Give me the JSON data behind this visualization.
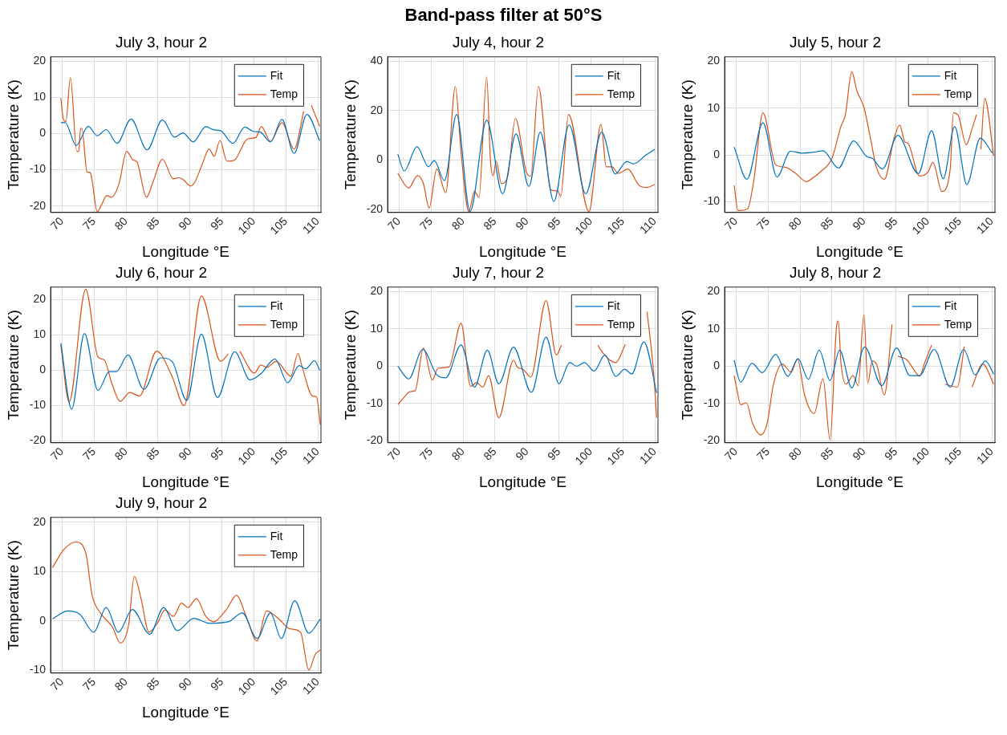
{
  "chart_data": [
    {
      "type": "line",
      "title": "July 3, hour 2",
      "annotations": [
        "Band-pass filter at 50°S"
      ],
      "xlabel": "Longitude °E",
      "ylabel": "Temperature (K)",
      "xlim": [
        68.2,
        110.5
      ],
      "xticks": [
        70,
        75,
        80,
        85,
        90,
        95,
        100,
        105,
        110
      ],
      "ylim": [
        -21.8,
        21.2
      ],
      "yticks": [
        -20,
        -10,
        0,
        10,
        20
      ],
      "grid": true,
      "legend": "top right",
      "marker": "none",
      "line_style": "solid",
      "series": [
        {
          "name": "Fit",
          "color": "#0072bd",
          "x": [
            69.8,
            70.5,
            72.2,
            74.1,
            75.5,
            76.9,
            78.6,
            80.8,
            83.3,
            85.7,
            87.6,
            88.9,
            90.5,
            92.5,
            93.8,
            94.8,
            96.7,
            98.6,
            99.9,
            101,
            102.6,
            104.4,
            106.3,
            108.3,
            110.3
          ],
          "values": [
            3,
            3,
            -3.3,
            2,
            -0.6,
            1.1,
            -2.7,
            4,
            -4.5,
            3.8,
            -1,
            0.2,
            -2.3,
            1.9,
            1,
            0.8,
            -2.7,
            1.8,
            0.6,
            0.4,
            -2.3,
            3.9,
            -5.5,
            5.3,
            -2
          ]
        },
        {
          "name": "Temp",
          "color": "#d95319",
          "x": [
            69.8,
            70.2,
            70.6,
            71.3,
            72.3,
            72.6,
            72.9,
            73.1,
            73.9,
            74.4,
            74.7,
            75.5,
            76.2,
            77,
            77.7,
            78.9,
            80.1,
            81.1,
            81.7,
            83.2,
            84.2,
            85.7,
            87.4,
            88.3,
            89,
            90.1,
            90.8,
            91.9,
            93,
            93.8,
            94.7,
            95.8,
            96.9,
            99,
            100.3,
            101.2,
            102.6,
            104.4,
            106.3,
            107.8,
            108.4,
            109,
            110.3
          ],
          "values": [
            9.8,
            4,
            3.3,
            15.5,
            -4.9,
            -4.9,
            1.4,
            1.4,
            -10.6,
            -10.8,
            -13,
            -21.6,
            -19.6,
            -17.1,
            -17.6,
            -13.9,
            -4.9,
            -7.3,
            -7.8,
            -17.6,
            -13.5,
            -7.1,
            -12.5,
            -12.2,
            -12.8,
            -14.5,
            -13.3,
            -8.6,
            -4.3,
            -6.3,
            -1.9,
            -7.6,
            -7.4,
            -1.5,
            -1.1,
            1.9,
            -2.2,
            3,
            -4.3,
            6.1,
            null,
            7.8,
            2
          ]
        }
      ]
    },
    {
      "type": "line",
      "title": "July 4, hour 2",
      "xlabel": "Longitude °E",
      "ylabel": "Temperature (K)",
      "xlim": [
        68.2,
        110.5
      ],
      "xticks": [
        70,
        75,
        80,
        85,
        90,
        95,
        100,
        105,
        110
      ],
      "ylim": [
        -21.2,
        41.8
      ],
      "yticks": [
        -20,
        0,
        20,
        40
      ],
      "grid": true,
      "legend": "top right",
      "marker": "none",
      "line_style": "solid",
      "series": [
        {
          "name": "Fit",
          "color": "#0072bd",
          "x": [
            69.8,
            70.8,
            72.8,
            74.6,
            75.5,
            77.1,
            79,
            81.1,
            83.7,
            86.2,
            88.3,
            90.3,
            92.1,
            94.2,
            96.6,
            99.2,
            101.7,
            103.8,
            105.6,
            106.7,
            108.6,
            110
          ],
          "values": [
            2.4,
            -4.4,
            5.4,
            -2.7,
            -0.2,
            -8.3,
            18.5,
            -20.8,
            16.1,
            -13.7,
            10.7,
            -10.7,
            11.3,
            -16.7,
            14.3,
            -13.7,
            11.3,
            -5.6,
            -0.6,
            -1.5,
            2,
            4.4
          ]
        },
        {
          "name": "Temp",
          "color": "#d95319",
          "x": [
            69.8,
            71.5,
            72.9,
            73.8,
            74.7,
            75.9,
            77.3,
            78.8,
            79.7,
            80.9,
            81.8,
            82.5,
            83.7,
            84.3,
            84.7,
            85.2,
            86,
            87,
            88.2,
            89.9,
            90.6,
            91.8,
            93.7,
            94.8,
            95.3,
            96.5,
            99.7,
            101.6,
            102.4,
            103.3,
            104.3,
            105.8,
            107.5,
            108.8,
            110
          ],
          "values": [
            -5.4,
            -11.3,
            -6.3,
            -9.5,
            -19.4,
            -3.6,
            -13.2,
            29.8,
            3,
            -20.8,
            -12.7,
            -15.1,
            33.7,
            -0.4,
            -6.3,
            -0.4,
            -9.5,
            -6.5,
            16.9,
            -4.8,
            -6.5,
            29.8,
            -11.9,
            -12.5,
            -14.6,
            18.5,
            -20.8,
            14.5,
            -2.7,
            -2.7,
            -5.4,
            -3.6,
            -10.1,
            -11.1,
            -9.8
          ]
        }
      ]
    },
    {
      "type": "line",
      "title": "July 5, hour 2",
      "xlabel": "Longitude °E",
      "ylabel": "Temperature (K)",
      "xlim": [
        68.2,
        110.5
      ],
      "xticks": [
        70,
        75,
        80,
        85,
        90,
        95,
        100,
        105,
        110
      ],
      "ylim": [
        -12.3,
        21
      ],
      "yticks": [
        -10,
        0,
        10,
        20
      ],
      "grid": true,
      "legend": "top right",
      "marker": "none",
      "line_style": "solid",
      "series": [
        {
          "name": "Fit",
          "color": "#0072bd",
          "x": [
            69.7,
            71.7,
            74.2,
            76.4,
            78.5,
            80.3,
            82.2,
            83.6,
            86,
            88.4,
            90.4,
            91.3,
            92.9,
            95.3,
            98.5,
            100.6,
            102.4,
            104.2,
            106.1,
            108.2,
            110.1
          ],
          "values": [
            1.7,
            -5.2,
            6.9,
            -4.7,
            0.8,
            0.4,
            0.6,
            0.9,
            -2.8,
            3,
            -0.3,
            -0.7,
            -3,
            4.2,
            -4,
            5.2,
            -5.1,
            6.1,
            -6.3,
            3.6,
            0.4
          ]
        },
        {
          "name": "Temp",
          "color": "#d95319",
          "x": [
            69.7,
            70.3,
            71.8,
            72.8,
            74.2,
            76.2,
            77.7,
            79.2,
            81,
            82.2,
            83.1,
            85,
            86.4,
            87.1,
            88.1,
            88.9,
            90,
            91.1,
            91.9,
            93.2,
            94.7,
            95.6,
            96.4,
            96.9,
            98.7,
            100,
            100.8,
            102.2,
            103.5,
            104,
            104.8,
            106,
            106.9,
            107.6,
            108,
            108.3,
            108.9,
            110.3
          ],
          "values": [
            -6.5,
            -11.9,
            -11.5,
            -5.2,
            9,
            -2.1,
            -2.6,
            -3.8,
            -5.7,
            -4.7,
            -3.7,
            -0.7,
            6.1,
            8.6,
            17.8,
            13.7,
            10.2,
            3,
            -2.4,
            -5.2,
            3.5,
            6.4,
            2.8,
            2.5,
            -4.5,
            -3.7,
            -1.6,
            -7.8,
            -3,
            9,
            8.3,
            2.2,
            5.5,
            8.6,
            null,
            1.2,
            12.1,
            -0.2
          ]
        }
      ]
    },
    {
      "type": "line",
      "title": "July 6, hour 2",
      "xlabel": "Longitude °E",
      "ylabel": "Temperature (K)",
      "xlim": [
        68.2,
        110.5
      ],
      "xticks": [
        70,
        75,
        80,
        85,
        90,
        95,
        100,
        105,
        110
      ],
      "ylim": [
        -20.5,
        23.5
      ],
      "yticks": [
        -20,
        -10,
        0,
        10,
        20
      ],
      "grid": true,
      "legend": "top right",
      "marker": "none",
      "line_style": "solid",
      "series": [
        {
          "name": "Fit",
          "color": "#0072bd",
          "x": [
            69.8,
            71.5,
            73.5,
            75.6,
            77.4,
            78.5,
            80.3,
            82.8,
            85.4,
            87.2,
            89.5,
            91.8,
            94.3,
            97,
            99.4,
            101.1,
            103.3,
            105.3,
            107.1,
            108.1,
            109.5,
            110.3
          ],
          "values": [
            7.7,
            -11,
            10.4,
            -5.7,
            -0.4,
            -0.4,
            4.3,
            -5.4,
            3.5,
            2.5,
            -8.5,
            10.2,
            -7.7,
            5.2,
            -2.7,
            -1,
            3.2,
            -3.5,
            1.3,
            0.4,
            2.7,
            0
          ]
        },
        {
          "name": "Temp",
          "color": "#d95319",
          "x": [
            69.8,
            71.1,
            73.7,
            75.6,
            76.6,
            77.8,
            79.1,
            80.6,
            82.1,
            84.8,
            87.2,
            89.1,
            91.8,
            94.8,
            96,
            97.3,
            97.8,
            100.1,
            101.1,
            102,
            103.5,
            105.8,
            106.9,
            107.5,
            109.2,
            109.8,
            110.4
          ],
          "values": [
            7.1,
            -9,
            22.9,
            3.8,
            2.9,
            -3.8,
            -8.8,
            -6.3,
            -7.3,
            5.4,
            -1.7,
            -10,
            21,
            2.5,
            4.6,
            null,
            5.4,
            -0.8,
            1.5,
            0.8,
            2.5,
            -1.7,
            4.8,
            1.3,
            -7.3,
            -7.5,
            -15.4
          ]
        }
      ]
    },
    {
      "type": "line",
      "title": "July 7, hour 2",
      "xlabel": "Longitude °E",
      "ylabel": "Temperature (K)",
      "xlim": [
        68.2,
        110.5
      ],
      "xticks": [
        70,
        75,
        80,
        85,
        90,
        95,
        100,
        105,
        110
      ],
      "ylim": [
        -20.5,
        21.2
      ],
      "yticks": [
        -20,
        -10,
        0,
        10,
        20
      ],
      "grid": true,
      "legend": "top right",
      "marker": "none",
      "line_style": "solid",
      "series": [
        {
          "name": "Fit",
          "color": "#0072bd",
          "x": [
            69.8,
            71.5,
            73.7,
            75.9,
            77.3,
            79.7,
            81.8,
            83.8,
            85.6,
            87.9,
            90.7,
            93,
            95,
            96.7,
            97.8,
            99,
            100.5,
            102.2,
            103.9,
            105.3,
            106.4,
            108.3,
            110.3
          ],
          "values": [
            0,
            -3.4,
            4.5,
            -2.3,
            -3.1,
            5.7,
            -5.6,
            4.3,
            -4.7,
            5.1,
            -7,
            7.8,
            -4.7,
            1,
            0,
            1,
            -1.3,
            3,
            -2.7,
            -0.8,
            -2.1,
            6.5,
            -7.2
          ]
        },
        {
          "name": "Temp",
          "color": "#d95319",
          "x": [
            69.8,
            70.6,
            71.7,
            72.5,
            73.8,
            75.2,
            76.1,
            77.8,
            79.7,
            81.2,
            82.1,
            83.1,
            84,
            85.6,
            87.9,
            88.6,
            89.3,
            90.6,
            93,
            94.6,
            95.4,
            98,
            101.1,
            101.4,
            103.9,
            105.4,
            107,
            108.8,
            109.8,
            110.3
          ],
          "values": [
            -10.3,
            -8.7,
            -6.8,
            -6.6,
            4.9,
            -3.7,
            -0.5,
            -0.2,
            11.5,
            -5.4,
            -4.4,
            -5.6,
            -2.5,
            -13.8,
            1.6,
            -0.4,
            -0.7,
            -2.9,
            17.6,
            3,
            5.7,
            null,
            5.7,
            4.7,
            1,
            5.9,
            null,
            14.6,
            -1.3,
            -13.8
          ]
        }
      ]
    },
    {
      "type": "line",
      "title": "July 8, hour 2",
      "xlabel": "Longitude °E",
      "ylabel": "Temperature (K)",
      "xlim": [
        68.2,
        110.5
      ],
      "xticks": [
        70,
        75,
        80,
        85,
        90,
        95,
        100,
        105,
        110
      ],
      "ylim": [
        -20.5,
        21.2
      ],
      "yticks": [
        -20,
        -10,
        0,
        10,
        20
      ],
      "grid": true,
      "legend": "top right",
      "marker": "none",
      "line_style": "solid",
      "series": [
        {
          "name": "Fit",
          "color": "#0072bd",
          "x": [
            69.7,
            70.7,
            72.5,
            74.1,
            76.2,
            78.1,
            79.7,
            81.3,
            83,
            84.7,
            86.2,
            88.1,
            90.1,
            92.8,
            95.1,
            97.2,
            98.7,
            101,
            103.5,
            105.6,
            107.4,
            109,
            110.3
          ],
          "values": [
            1.6,
            -4.3,
            0.8,
            -1.7,
            3.2,
            -2.7,
            2,
            -3.5,
            4.3,
            -3.8,
            4.3,
            -5.8,
            5.2,
            -5.2,
            4.9,
            -2.5,
            -2.5,
            4.5,
            -5.6,
            4.5,
            -2.3,
            1.4,
            -2.1
          ]
        },
        {
          "name": "Temp",
          "color": "#d95319",
          "x": [
            69.7,
            70.1,
            70.7,
            71.6,
            72.6,
            73.9,
            74.9,
            75.8,
            77.2,
            78.6,
            79.6,
            80.7,
            82.2,
            83.6,
            84.7,
            85.7,
            86,
            86.4,
            87.2,
            88.3,
            89.1,
            90,
            90.6,
            91.3,
            92,
            93.2,
            94.4,
            94.9,
            95.3,
            96.8,
            97.8,
            98.7,
            99.5,
            100.6,
            100.9,
            102.7,
            104.6,
            105.7,
            105.9,
            106.9,
            108.6,
            110.3
          ],
          "values": [
            -2.5,
            -6,
            -10.3,
            -9.8,
            -15.4,
            -18.4,
            -15,
            -5.2,
            0.6,
            -1.6,
            2,
            -7.6,
            -12.7,
            -3.3,
            -19.7,
            10.4,
            12.1,
            1,
            -4.8,
            -2.5,
            -5.2,
            13.9,
            -4.5,
            1.4,
            0.4,
            -7.7,
            11.2,
            null,
            2.7,
            1.6,
            -0.9,
            -2.7,
            0.9,
            5.7,
            null,
            -4.8,
            -5.6,
            5.3,
            null,
            -5.6,
            0.6,
            -4.8
          ]
        }
      ]
    },
    {
      "type": "line",
      "title": "July 9, hour 2",
      "xlabel": "Longitude °E",
      "ylabel": "Temperature (K)",
      "xlim": [
        68.2,
        110.5
      ],
      "xticks": [
        70,
        75,
        80,
        85,
        90,
        95,
        100,
        105,
        110
      ],
      "ylim": [
        -10.6,
        21
      ],
      "yticks": [
        -10,
        0,
        10,
        20
      ],
      "grid": true,
      "legend": "top right",
      "marker": "none",
      "line_style": "solid",
      "series": [
        {
          "name": "Fit",
          "color": "#0072bd",
          "x": [
            68.5,
            70.9,
            72.8,
            74.95,
            76.9,
            78.8,
            81,
            83.7,
            85.9,
            88,
            90.6,
            93.1,
            96,
            98.2,
            100.5,
            102.6,
            104.3,
            106.4,
            108.6,
            110.4
          ],
          "values": [
            0.4,
            2,
            1.3,
            -2.3,
            2.7,
            -2.3,
            2.3,
            -2.7,
            2.7,
            -2,
            0.5,
            -0.5,
            -0.2,
            1.6,
            -3.6,
            1.6,
            -3.6,
            4.1,
            -2.5,
            0.4
          ]
        },
        {
          "name": "Temp",
          "color": "#d95319",
          "x": [
            68.5,
            70.3,
            72.2,
            73.7,
            74.7,
            76,
            77.9,
            79.1,
            80.4,
            81.3,
            82.3,
            83.6,
            84.9,
            86.1,
            87.4,
            88.7,
            89.7,
            91,
            92.5,
            93.7,
            95.7,
            97.3,
            98.8,
            100.5,
            102,
            103.9,
            105.6,
            107.3,
            108.6,
            109.6,
            110.4
          ],
          "values": [
            10.8,
            14.5,
            16,
            13.8,
            5.2,
            1.6,
            -1.3,
            -4.5,
            -0.9,
            9,
            4.8,
            -2.3,
            -0.5,
            2.2,
            0.9,
            3.6,
            2.7,
            4.5,
            0.9,
            -0.2,
            2.3,
            5.2,
            0.9,
            -4.1,
            2,
            0.4,
            -1.6,
            -2.3,
            -10,
            -6.8,
            -5.9
          ]
        }
      ]
    }
  ]
}
